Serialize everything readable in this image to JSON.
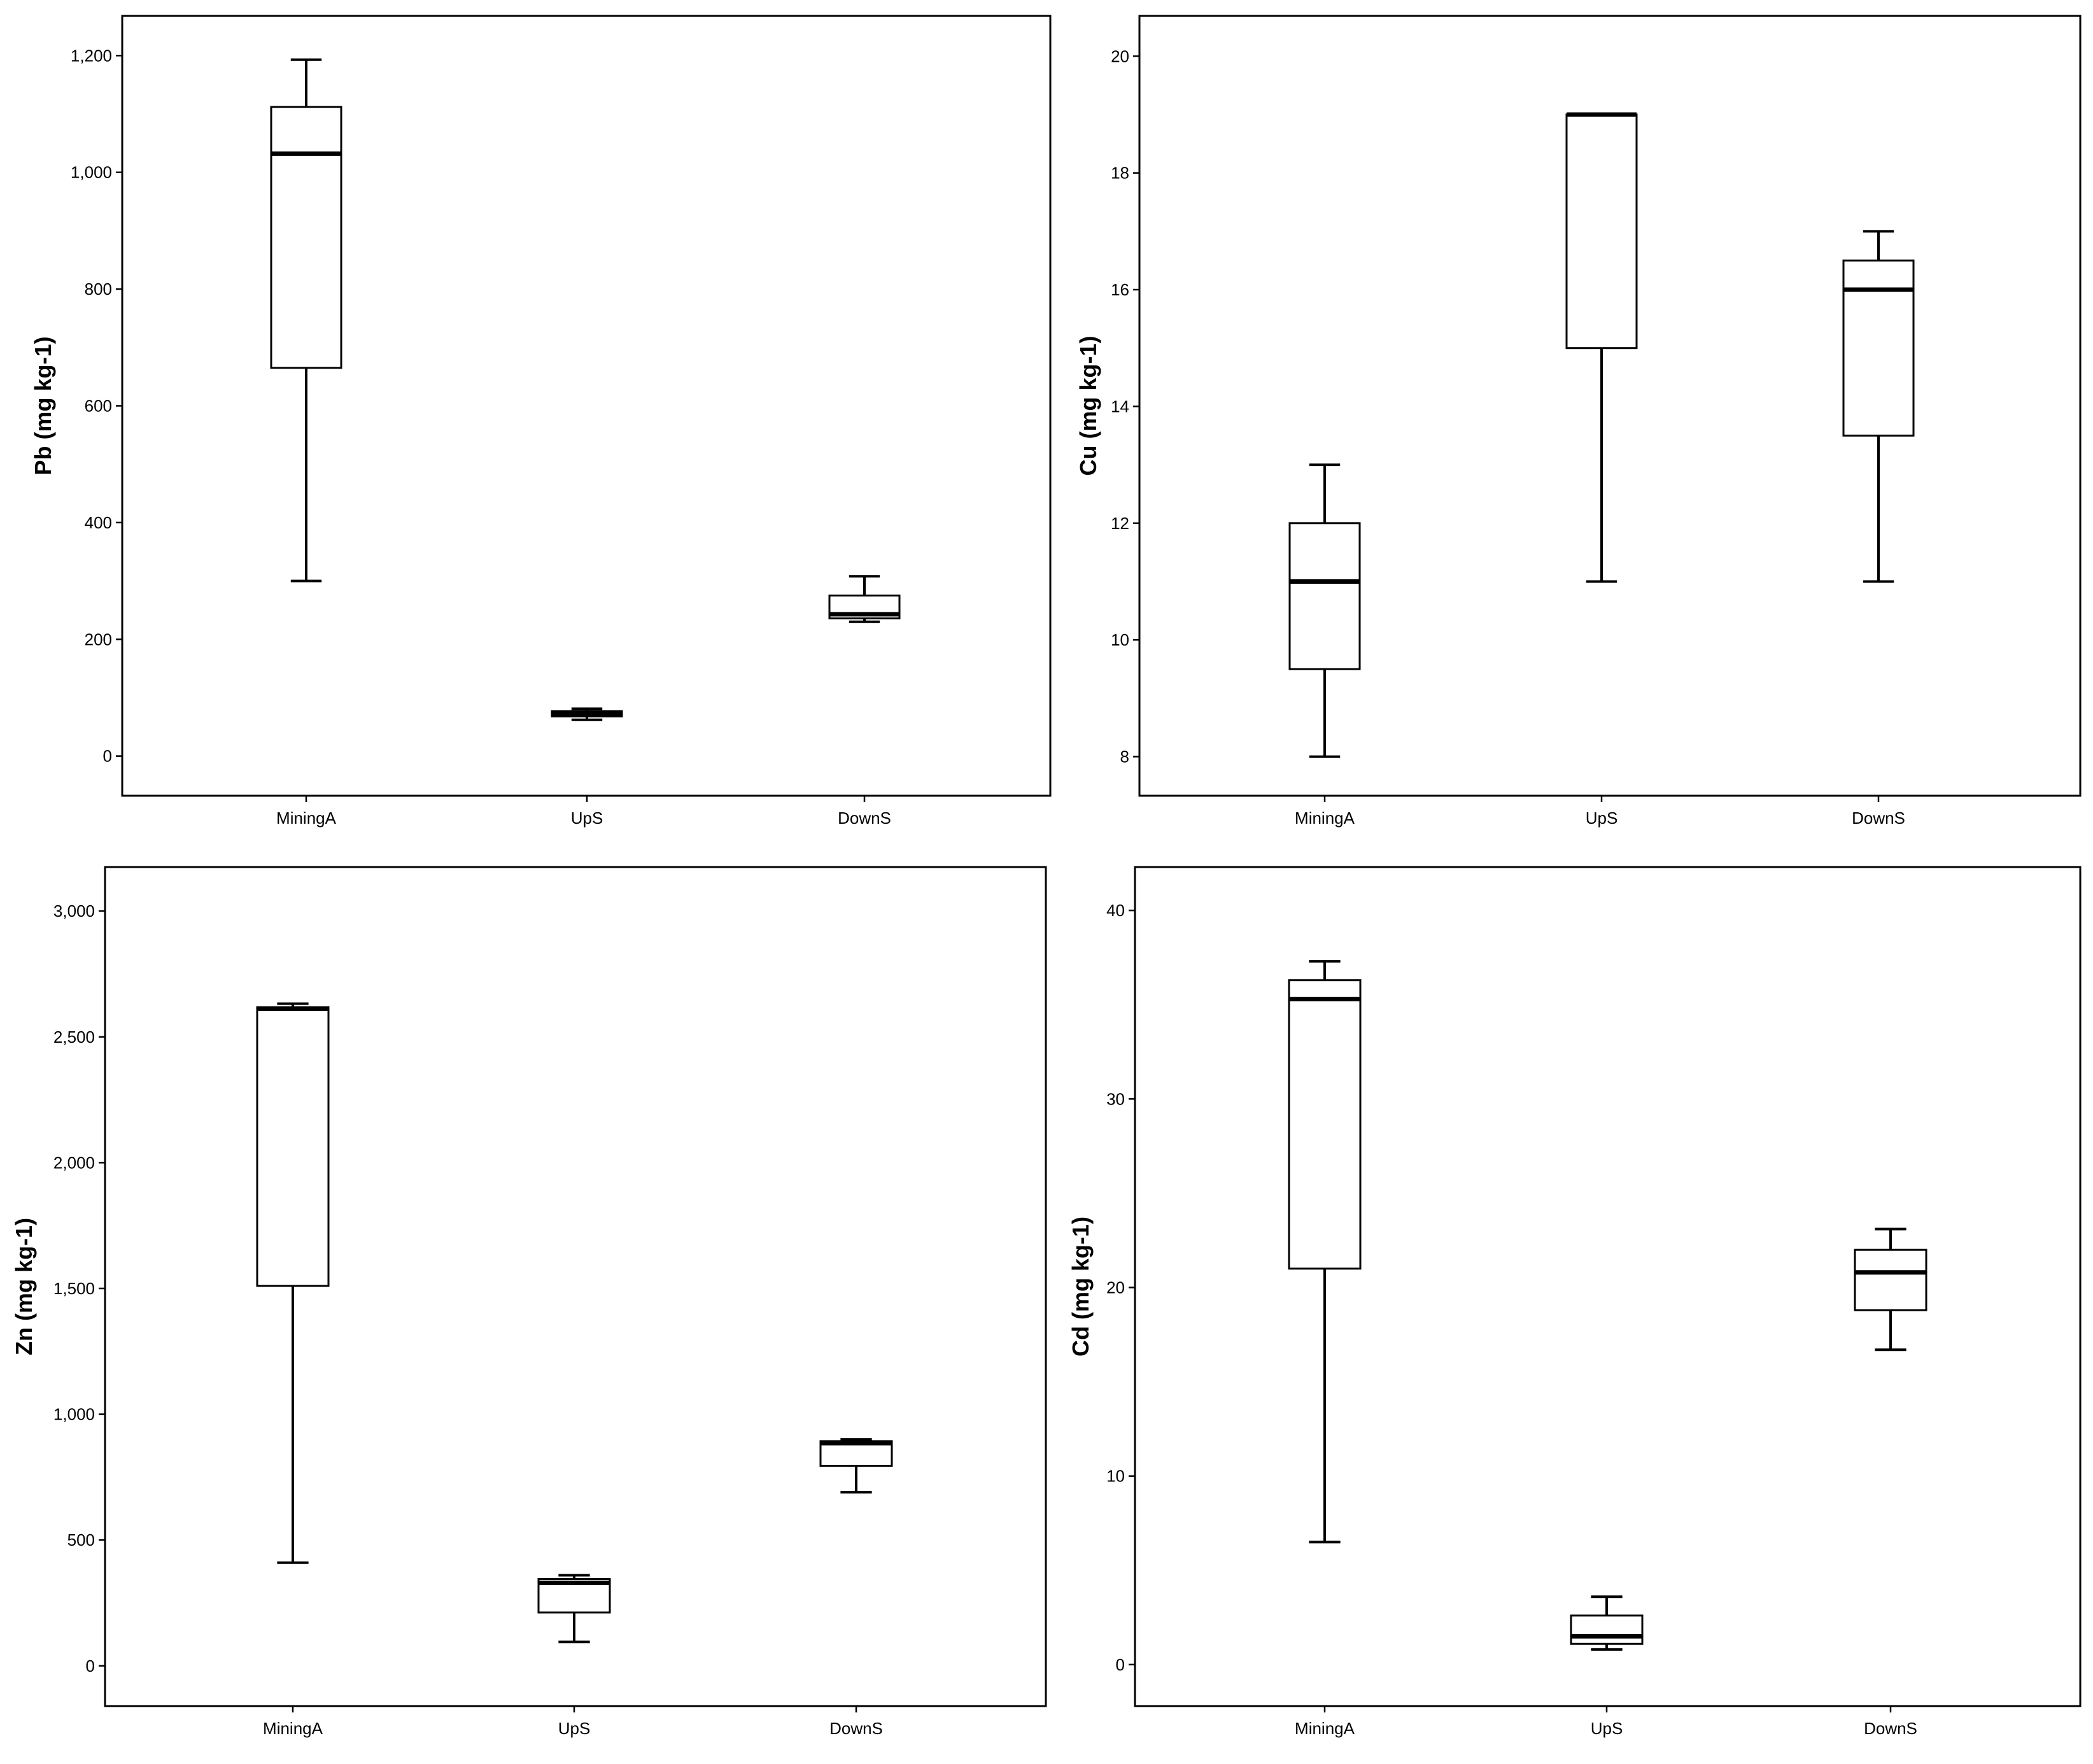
{
  "chart_data": [
    {
      "type": "box",
      "ylabel": "Pb (mg kg-1)",
      "xlabel": "",
      "categories": [
        "MiningA",
        "UpS",
        "DownS"
      ],
      "ylim": [
        -68,
        1268
      ],
      "yticks": [
        0,
        200,
        400,
        600,
        800,
        1000,
        1200
      ],
      "ytick_labels": [
        "0",
        "200",
        "400",
        "600",
        "800",
        "1,000",
        "1,200"
      ],
      "boxes": [
        {
          "category": "MiningA",
          "min": 300,
          "q1": 665,
          "median": 1032,
          "q3": 1112,
          "max": 1193
        },
        {
          "category": "UpS",
          "min": 62,
          "q1": 68,
          "median": 72,
          "q3": 77,
          "max": 81
        },
        {
          "category": "DownS",
          "min": 230,
          "q1": 236,
          "median": 243,
          "q3": 275,
          "max": 308
        }
      ]
    },
    {
      "type": "box",
      "ylabel": "Cu (mg kg-1)",
      "xlabel": "",
      "categories": [
        "MiningA",
        "UpS",
        "DownS"
      ],
      "ylim": [
        7.33,
        20.69
      ],
      "yticks": [
        8,
        10,
        12,
        14,
        16,
        18,
        20
      ],
      "ytick_labels": [
        "8",
        "10",
        "12",
        "14",
        "16",
        "18",
        "20"
      ],
      "boxes": [
        {
          "category": "MiningA",
          "min": 8,
          "q1": 9.5,
          "median": 11,
          "q3": 12,
          "max": 13
        },
        {
          "category": "UpS",
          "min": 11,
          "q1": 15,
          "median": 19,
          "q3": 19,
          "max": 19
        },
        {
          "category": "DownS",
          "min": 11,
          "q1": 13.5,
          "median": 16,
          "q3": 16.5,
          "max": 17
        }
      ]
    },
    {
      "type": "box",
      "ylabel": "Zn (mg kg-1)",
      "xlabel": "",
      "categories": [
        "MiningA",
        "UpS",
        "DownS"
      ],
      "ylim": [
        -160,
        3175
      ],
      "yticks": [
        0,
        500,
        1000,
        1500,
        2000,
        2500,
        3000
      ],
      "ytick_labels": [
        "0",
        "500",
        "1,000",
        "1,500",
        "2,000",
        "2,500",
        "3,000"
      ],
      "boxes": [
        {
          "category": "MiningA",
          "min": 410,
          "q1": 1510,
          "median": 2612,
          "q3": 2618,
          "max": 2632
        },
        {
          "category": "UpS",
          "min": 95,
          "q1": 212,
          "median": 330,
          "q3": 345,
          "max": 360
        },
        {
          "category": "DownS",
          "min": 690,
          "q1": 795,
          "median": 885,
          "q3": 893,
          "max": 900
        }
      ]
    },
    {
      "type": "box",
      "ylabel": "Cd (mg kg-1)",
      "xlabel": "",
      "categories": [
        "MiningA",
        "UpS",
        "DownS"
      ],
      "ylim": [
        -2.2,
        42.3
      ],
      "yticks": [
        0,
        10,
        20,
        30,
        40
      ],
      "ytick_labels": [
        "0",
        "10",
        "20",
        "30",
        "40"
      ],
      "boxes": [
        {
          "category": "MiningA",
          "min": 6.5,
          "q1": 21,
          "median": 35.3,
          "q3": 36.3,
          "max": 37.3
        },
        {
          "category": "UpS",
          "min": 0.8,
          "q1": 1.1,
          "median": 1.5,
          "q3": 2.6,
          "max": 3.6
        },
        {
          "category": "DownS",
          "min": 16.7,
          "q1": 18.8,
          "median": 20.8,
          "q3": 22,
          "max": 23.1
        }
      ]
    }
  ]
}
